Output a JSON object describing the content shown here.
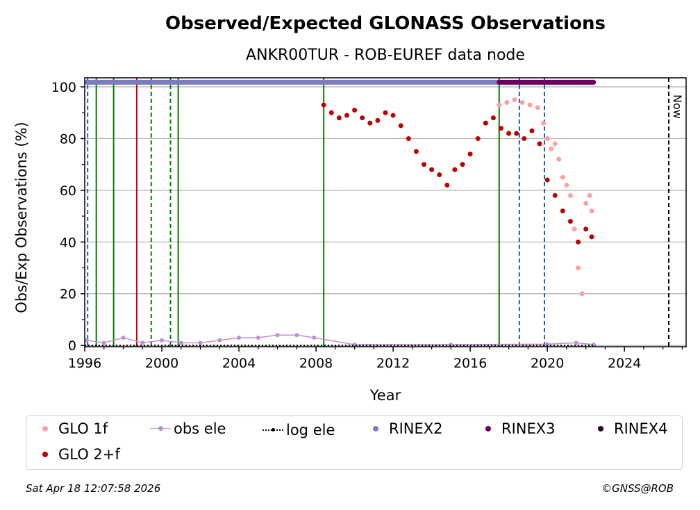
{
  "chart_data": {
    "type": "scatter",
    "title": "Observed/Expected GLONASS Observations",
    "subtitle": "ANKR00TUR - ROB-EUREF data node",
    "xlabel": "Year",
    "ylabel": "Obs/Exp Observations (%)",
    "xlim": [
      1996,
      2027.2
    ],
    "ylim": [
      -0.5,
      103.5
    ],
    "x_ticks": [
      1996,
      2000,
      2004,
      2008,
      2012,
      2016,
      2020,
      2024
    ],
    "y_ticks": [
      0,
      20,
      40,
      60,
      80,
      100
    ],
    "grid": "horizontal",
    "now_label": "Now",
    "now_x": 2026.3,
    "series": [
      {
        "name": "GLO 1f",
        "color": "#f9a3a3",
        "points": [
          [
            2017.5,
            93
          ],
          [
            2017.9,
            94
          ],
          [
            2018.3,
            95
          ],
          [
            2018.7,
            94
          ],
          [
            2019.1,
            93
          ],
          [
            2019.5,
            92
          ],
          [
            2019.8,
            86
          ],
          [
            2020.0,
            80
          ],
          [
            2020.2,
            76
          ],
          [
            2020.4,
            78
          ],
          [
            2020.6,
            72
          ],
          [
            2020.8,
            65
          ],
          [
            2021.0,
            62
          ],
          [
            2021.2,
            58
          ],
          [
            2021.4,
            45
          ],
          [
            2021.6,
            30
          ],
          [
            2021.8,
            20
          ],
          [
            2022.0,
            55
          ],
          [
            2022.2,
            58
          ],
          [
            2022.3,
            52
          ]
        ]
      },
      {
        "name": "GLO 2+f",
        "color": "#bb0000",
        "points": [
          [
            2008.4,
            93
          ],
          [
            2008.8,
            90
          ],
          [
            2009.2,
            88
          ],
          [
            2009.6,
            89
          ],
          [
            2010.0,
            91
          ],
          [
            2010.4,
            88
          ],
          [
            2010.8,
            86
          ],
          [
            2011.2,
            87
          ],
          [
            2011.6,
            90
          ],
          [
            2012.0,
            89
          ],
          [
            2012.4,
            85
          ],
          [
            2012.8,
            80
          ],
          [
            2013.2,
            75
          ],
          [
            2013.6,
            70
          ],
          [
            2014.0,
            68
          ],
          [
            2014.4,
            66
          ],
          [
            2014.8,
            62
          ],
          [
            2015.2,
            68
          ],
          [
            2015.6,
            70
          ],
          [
            2016.0,
            74
          ],
          [
            2016.4,
            80
          ],
          [
            2016.8,
            86
          ],
          [
            2017.2,
            88
          ],
          [
            2017.6,
            84
          ],
          [
            2018.0,
            82
          ],
          [
            2018.4,
            82
          ],
          [
            2018.8,
            80
          ],
          [
            2019.2,
            83
          ],
          [
            2019.6,
            78
          ],
          [
            2020.0,
            64
          ],
          [
            2020.4,
            58
          ],
          [
            2020.8,
            52
          ],
          [
            2021.2,
            48
          ],
          [
            2021.6,
            40
          ],
          [
            2022.0,
            45
          ],
          [
            2022.3,
            42
          ]
        ]
      },
      {
        "name": "obs ele",
        "color": "#c090d0",
        "points": [
          [
            1996.1,
            2
          ],
          [
            1997.0,
            1
          ],
          [
            1998.0,
            3
          ],
          [
            1999.0,
            1
          ],
          [
            2000.0,
            2
          ],
          [
            2001.0,
            1
          ],
          [
            2002.0,
            1
          ],
          [
            2003.0,
            2
          ],
          [
            2004.0,
            3
          ],
          [
            2005.0,
            3
          ],
          [
            2006.0,
            4
          ],
          [
            2007.0,
            4
          ],
          [
            2007.9,
            3
          ],
          [
            2010.0,
            0.3
          ],
          [
            2015.0,
            0.3
          ],
          [
            2020.0,
            0.5
          ],
          [
            2021.5,
            1
          ],
          [
            2022.4,
            0.3
          ]
        ]
      },
      {
        "name": "log ele",
        "color": "#000000",
        "points": [
          [
            1996.0,
            0
          ],
          [
            2022.5,
            0
          ]
        ]
      },
      {
        "name": "RINEX2",
        "color": "#7b7bbf",
        "x_range": [
          1996.1,
          2017.5
        ],
        "y": 101.8
      },
      {
        "name": "RINEX3",
        "color": "#6a0060",
        "x_range": [
          2017.5,
          2022.4
        ],
        "y": 101.8
      },
      {
        "name": "RINEX4",
        "color": "#2a0028",
        "x_range": [],
        "y": 101.8
      }
    ],
    "events": [
      {
        "x": 1996.15,
        "color": "#2060b0",
        "style": "dashed"
      },
      {
        "x": 1996.6,
        "color": "#008000",
        "style": "solid"
      },
      {
        "x": 1997.5,
        "color": "#008000",
        "style": "solid"
      },
      {
        "x": 1998.7,
        "color": "#cc0000",
        "style": "solid"
      },
      {
        "x": 1999.45,
        "color": "#008000",
        "style": "dashed"
      },
      {
        "x": 2000.45,
        "color": "#008000",
        "style": "dashed"
      },
      {
        "x": 2000.85,
        "color": "#008000",
        "style": "solid"
      },
      {
        "x": 2008.4,
        "color": "#008000",
        "style": "solid"
      },
      {
        "x": 2017.5,
        "color": "#008000",
        "style": "solid"
      },
      {
        "x": 2018.55,
        "color": "#2060b0",
        "style": "dashed"
      },
      {
        "x": 2019.85,
        "color": "#2060b0",
        "style": "dashed"
      }
    ]
  },
  "legend": [
    {
      "label": "GLO 1f",
      "color": "#f9a3a3",
      "kind": "dot"
    },
    {
      "label": "obs ele",
      "color": "#c090d0",
      "kind": "line-dot"
    },
    {
      "label": "log ele",
      "color": "#000000",
      "kind": "dotted-line"
    },
    {
      "label": "RINEX2",
      "color": "#7b7bbf",
      "kind": "dot"
    },
    {
      "label": "RINEX3",
      "color": "#6a0060",
      "kind": "dot"
    },
    {
      "label": "RINEX4",
      "color": "#2a0028",
      "kind": "dot"
    },
    {
      "label": "GLO 2+f",
      "color": "#bb0000",
      "kind": "dot"
    }
  ],
  "footer": {
    "timestamp": "Sat Apr 18 12:07:58 2026",
    "credit": "©GNSS@ROB"
  }
}
